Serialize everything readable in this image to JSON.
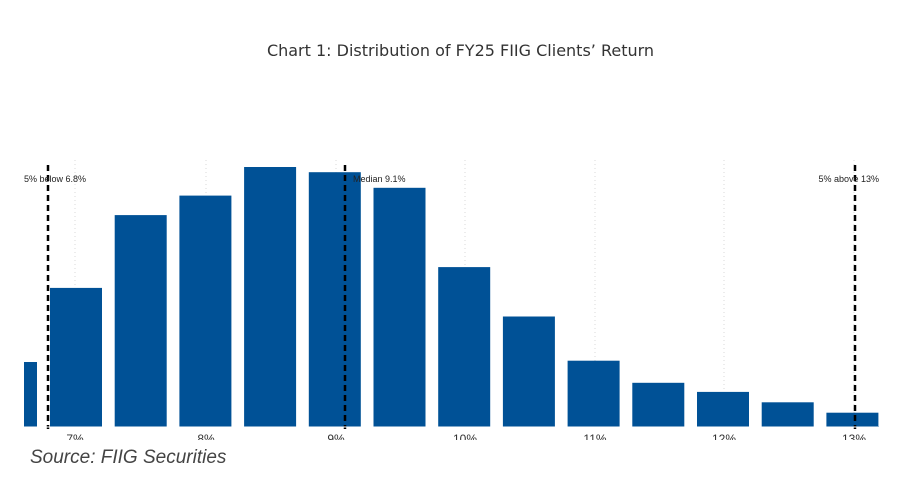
{
  "chart_data": {
    "type": "bar",
    "title": "Chart 1: Distribution of FY25 FIIG Clients’ Return",
    "xlabel": "",
    "ylabel": "",
    "x_ticks": [
      {
        "value": 7,
        "label": "7%"
      },
      {
        "value": 8,
        "label": "8%"
      },
      {
        "value": 9,
        "label": "9%"
      },
      {
        "value": 10,
        "label": "10%"
      },
      {
        "value": 11,
        "label": "11%"
      },
      {
        "value": 12,
        "label": "12%"
      },
      {
        "value": 13,
        "label": "13%"
      }
    ],
    "xlim": [
      6.25,
      13.4
    ],
    "ylim": [
      0,
      100
    ],
    "bin_width": 0.8,
    "bins": [
      {
        "center": 6.3,
        "value": 25
      },
      {
        "center": 7.0,
        "value": 53.5
      },
      {
        "center": 8.0,
        "value": 81.5
      },
      {
        "center": 8.4,
        "value": 89
      },
      {
        "center": 8.8,
        "value": 100
      },
      {
        "center": 9.2,
        "value": 98
      },
      {
        "center": 9.6,
        "value": 92
      },
      {
        "center": 10.0,
        "value": 61.5
      },
      {
        "center": 10.4,
        "value": 42.5
      },
      {
        "center": 10.8,
        "value": 25.5
      },
      {
        "center": 11.2,
        "value": 17
      },
      {
        "center": 11.6,
        "value": 13.5
      },
      {
        "center": 12.0,
        "value": 9.5
      },
      {
        "center": 12.4,
        "value": 5.5
      }
    ],
    "markers": [
      {
        "x": 6.8,
        "label": "5% below 6.8%"
      },
      {
        "x": 9.1,
        "label": "Median 9.1%"
      },
      {
        "x": 13.0,
        "label": "5% above 13%"
      }
    ],
    "grid": "vertical dotted",
    "bar_color": "#005196",
    "marker_color": "#000000"
  },
  "source": "Source: FIIG Securities"
}
